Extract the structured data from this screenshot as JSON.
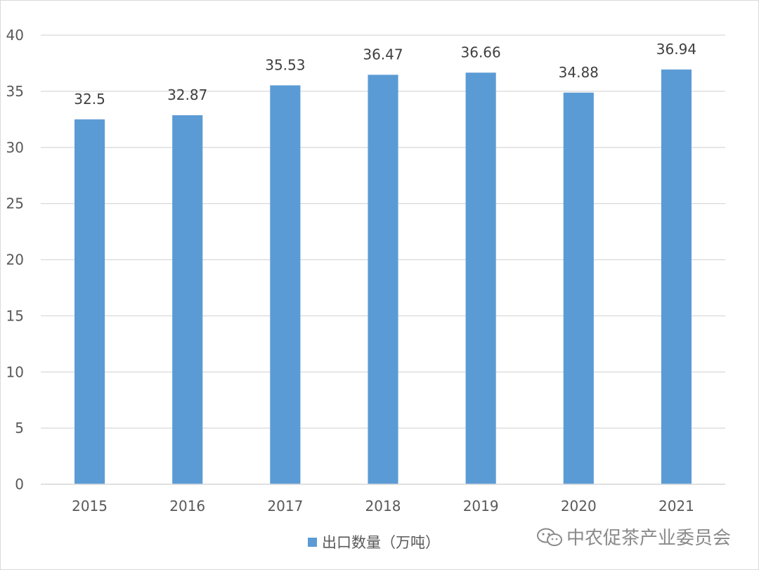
{
  "chart_data": {
    "type": "bar",
    "categories": [
      "2015",
      "2016",
      "2017",
      "2018",
      "2019",
      "2020",
      "2021"
    ],
    "series": [
      {
        "name": "出口数量（万吨）",
        "values": [
          32.5,
          32.87,
          35.53,
          36.47,
          36.66,
          34.88,
          36.94
        ]
      }
    ],
    "data_labels": [
      "32.5",
      "32.87",
      "35.53",
      "36.47",
      "36.66",
      "34.88",
      "36.94"
    ],
    "ylim": [
      0,
      40
    ],
    "yticks": [
      0,
      5,
      10,
      15,
      20,
      25,
      30,
      35,
      40
    ],
    "grid": true,
    "legend_position": "bottom",
    "bar_color": "#5b9bd5",
    "grid_color": "#d9d9d9"
  },
  "legend": {
    "label": "出口数量（万吨）"
  },
  "watermark": {
    "text": "中农促茶产业委员会",
    "icon": "wechat-logo-icon"
  }
}
